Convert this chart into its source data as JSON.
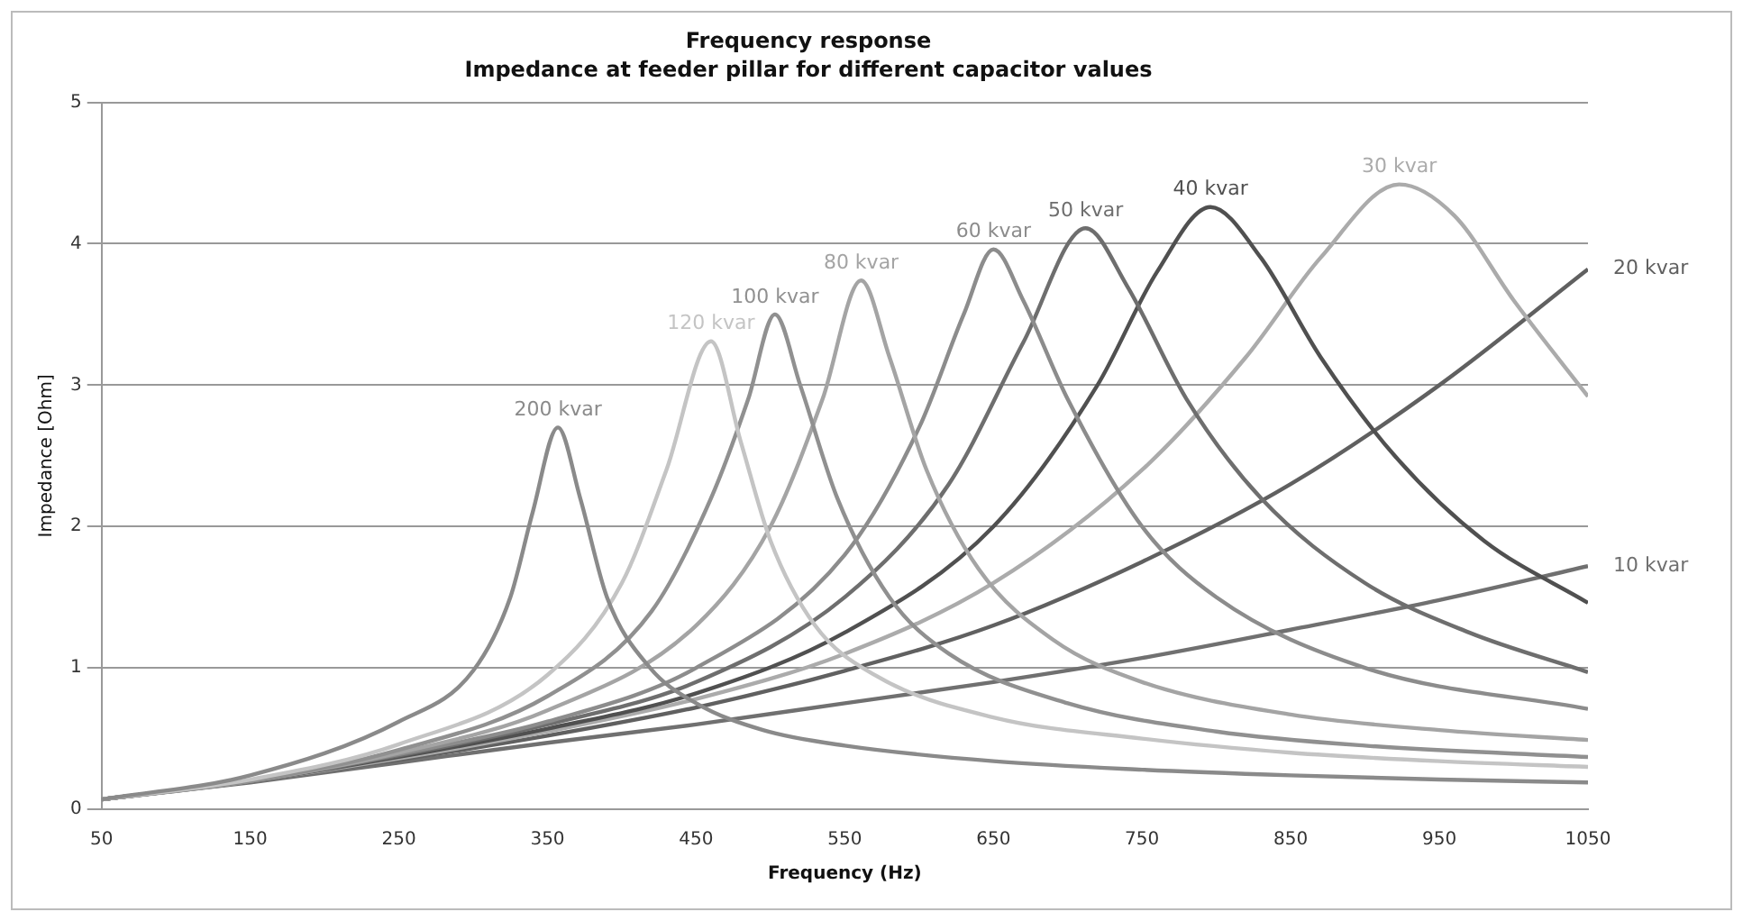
{
  "chart_data": {
    "type": "line",
    "title": "Frequency response",
    "subtitle": "Impedance at feeder pillar for different capacitor values",
    "xlabel": "Frequency (Hz)",
    "ylabel": "Impedance [Ohm]",
    "xlim": [
      50,
      1050
    ],
    "xticks": [
      50,
      150,
      250,
      350,
      450,
      550,
      650,
      750,
      850,
      950,
      1050
    ],
    "ylim": [
      0,
      5
    ],
    "yticks": [
      0,
      1,
      2,
      3,
      4,
      5
    ],
    "grid": "y",
    "legend": false,
    "marker": "none",
    "line_style": "solid",
    "series": [
      {
        "name": "200 kvar",
        "color": "#8a8a8a",
        "x": [
          50,
          150,
          250,
          300,
          325,
          340,
          357,
          372,
          390,
          419,
          450,
          495,
          550,
          650,
          750,
          850,
          950,
          1050
        ],
        "values": [
          0.07,
          0.24,
          0.62,
          0.98,
          1.5,
          2.1,
          2.7,
          2.2,
          1.5,
          1.0,
          0.75,
          0.56,
          0.45,
          0.34,
          0.28,
          0.24,
          0.21,
          0.19
        ]
      },
      {
        "name": "120 kvar",
        "color": "#c4c4c4",
        "x": [
          50,
          150,
          250,
          350,
          400,
          430,
          460,
          480,
          500,
          530,
          570,
          650,
          750,
          850,
          950,
          1050
        ],
        "values": [
          0.07,
          0.21,
          0.46,
          0.95,
          1.6,
          2.4,
          3.31,
          2.6,
          1.9,
          1.3,
          0.95,
          0.65,
          0.5,
          0.4,
          0.34,
          0.3
        ]
      },
      {
        "name": "100 kvar",
        "color": "#909090",
        "x": [
          50,
          150,
          250,
          350,
          420,
          460,
          485,
          503,
          520,
          545,
          580,
          620,
          700,
          800,
          900,
          1050
        ],
        "values": [
          0.07,
          0.2,
          0.42,
          0.8,
          1.4,
          2.2,
          2.9,
          3.5,
          3.0,
          2.2,
          1.5,
          1.1,
          0.75,
          0.55,
          0.45,
          0.37
        ]
      },
      {
        "name": "80 kvar",
        "color": "#a4a4a4",
        "x": [
          50,
          150,
          250,
          350,
          450,
          500,
          535,
          561,
          580,
          605,
          640,
          690,
          750,
          850,
          950,
          1050
        ],
        "values": [
          0.07,
          0.2,
          0.4,
          0.7,
          1.3,
          2.0,
          2.9,
          3.74,
          3.2,
          2.4,
          1.7,
          1.2,
          0.9,
          0.67,
          0.56,
          0.49
        ]
      },
      {
        "name": "60 kvar",
        "color": "#8c8c8c",
        "x": [
          50,
          150,
          250,
          350,
          450,
          550,
          600,
          630,
          650,
          670,
          700,
          750,
          800,
          900,
          1050
        ],
        "values": [
          0.07,
          0.2,
          0.39,
          0.62,
          1.0,
          1.8,
          2.7,
          3.5,
          3.96,
          3.6,
          2.9,
          2.0,
          1.5,
          1.0,
          0.71
        ]
      },
      {
        "name": "50 kvar",
        "color": "#6e6e6e",
        "x": [
          50,
          150,
          250,
          350,
          450,
          550,
          620,
          670,
          712,
          740,
          780,
          830,
          900,
          970,
          1050
        ],
        "values": [
          0.07,
          0.2,
          0.38,
          0.6,
          0.9,
          1.5,
          2.3,
          3.3,
          4.11,
          3.7,
          2.9,
          2.2,
          1.6,
          1.25,
          0.97
        ]
      },
      {
        "name": "40 kvar",
        "color": "#505050",
        "x": [
          50,
          150,
          250,
          350,
          450,
          550,
          650,
          720,
          760,
          796,
          830,
          870,
          920,
          980,
          1050
        ],
        "values": [
          0.07,
          0.2,
          0.37,
          0.57,
          0.82,
          1.25,
          2.0,
          3.0,
          3.8,
          4.26,
          3.9,
          3.2,
          2.5,
          1.9,
          1.46
        ]
      },
      {
        "name": "30 kvar",
        "color": "#ababab",
        "x": [
          50,
          150,
          250,
          350,
          450,
          550,
          650,
          750,
          820,
          870,
          923,
          960,
          1000,
          1050
        ],
        "values": [
          0.07,
          0.2,
          0.36,
          0.55,
          0.78,
          1.1,
          1.6,
          2.4,
          3.2,
          3.9,
          4.42,
          4.2,
          3.6,
          2.92
        ]
      },
      {
        "name": "20 kvar",
        "color": "#606060",
        "x": [
          50,
          150,
          250,
          350,
          450,
          550,
          650,
          750,
          850,
          950,
          1050
        ],
        "values": [
          0.07,
          0.2,
          0.35,
          0.52,
          0.72,
          0.98,
          1.3,
          1.75,
          2.3,
          3.0,
          3.82
        ]
      },
      {
        "name": "10 kvar",
        "color": "#707070",
        "x": [
          50,
          150,
          250,
          350,
          450,
          550,
          650,
          750,
          850,
          950,
          1050
        ],
        "values": [
          0.07,
          0.19,
          0.33,
          0.47,
          0.6,
          0.75,
          0.9,
          1.07,
          1.27,
          1.48,
          1.72
        ]
      }
    ]
  }
}
